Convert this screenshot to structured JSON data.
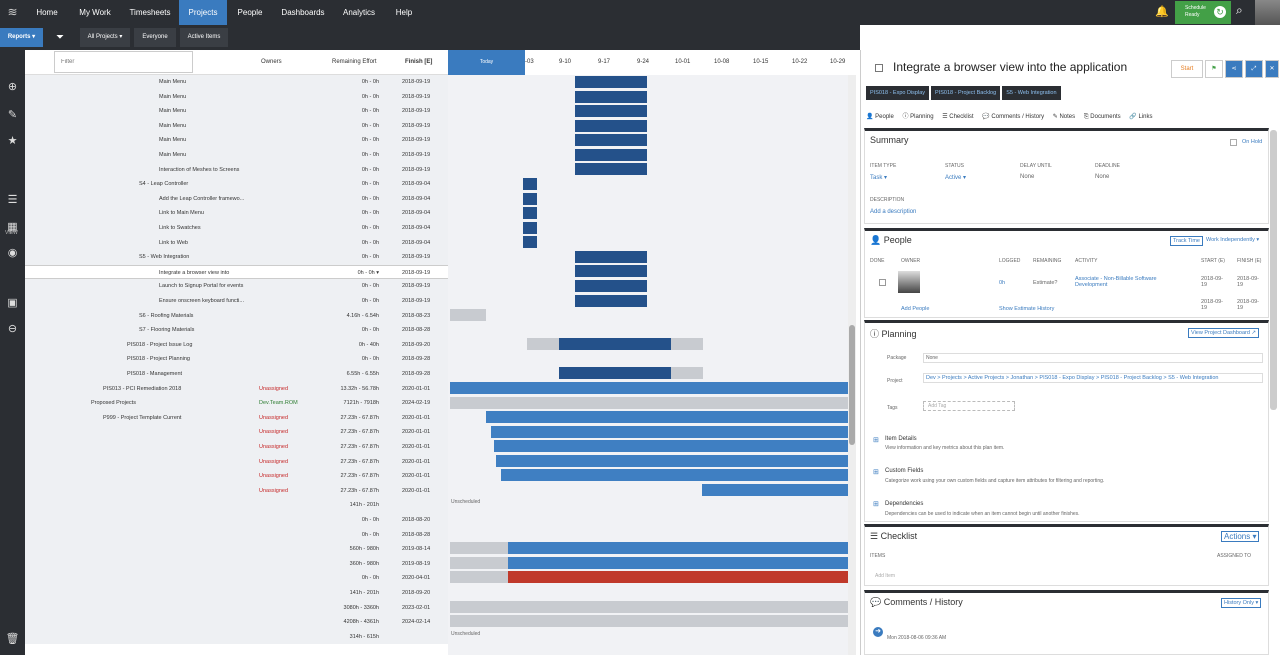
{
  "topnav": {
    "items": [
      "Home",
      "My Work",
      "Timesheets",
      "Projects",
      "People",
      "Dashboards",
      "Analytics",
      "Help"
    ],
    "active": "Projects",
    "schedule_l1": "Schedule",
    "schedule_l2": "Ready"
  },
  "toolbar": {
    "reports": "Reports ▾",
    "all_projects": "All Projects ▾",
    "everyone": "Everyone",
    "active_items": "Active Items"
  },
  "rail": {
    "view_label": "VIEW"
  },
  "grid": {
    "filter_placeholder": "Filter",
    "col_owners": "Owners",
    "col_effort": "Remaining Effort",
    "col_finish": "Finish [E]",
    "today": "Today",
    "dates": [
      "-03",
      "9-10",
      "9-17",
      "9-24",
      "10-01",
      "10-08",
      "10-15",
      "10-22",
      "10-29"
    ],
    "unscheduled": "Unscheduled",
    "rows": [
      {
        "name": "Main Menu",
        "owner": "",
        "effort": "0h - 0h",
        "finish": "2018-09-19"
      },
      {
        "name": "Main Menu",
        "owner": "",
        "effort": "0h - 0h",
        "finish": "2018-09-19"
      },
      {
        "name": "Main Menu",
        "owner": "",
        "effort": "0h - 0h",
        "finish": "2018-09-19"
      },
      {
        "name": "Main Menu",
        "owner": "",
        "effort": "0h - 0h",
        "finish": "2018-09-19"
      },
      {
        "name": "Main Menu",
        "owner": "",
        "effort": "0h - 0h",
        "finish": "2018-09-19"
      },
      {
        "name": "Main Menu",
        "owner": "",
        "effort": "0h - 0h",
        "finish": "2018-09-19"
      },
      {
        "name": "Interaction of Meshes to Screens",
        "owner": "",
        "effort": "0h - 0h",
        "finish": "2018-09-19"
      },
      {
        "name": "S4 - Leap Controller",
        "owner": "",
        "effort": "0h - 0h",
        "finish": "2018-09-04"
      },
      {
        "name": "Add the Leap Controller framewo...",
        "owner": "",
        "effort": "0h - 0h",
        "finish": "2018-09-04"
      },
      {
        "name": "Link to Main Menu",
        "owner": "",
        "effort": "0h - 0h",
        "finish": "2018-09-04"
      },
      {
        "name": "Link to Swatches",
        "owner": "",
        "effort": "0h - 0h",
        "finish": "2018-09-04"
      },
      {
        "name": "Link to Web",
        "owner": "",
        "effort": "0h - 0h",
        "finish": "2018-09-04"
      },
      {
        "name": "S5 - Web Integration",
        "owner": "",
        "effort": "0h - 0h",
        "finish": "2018-09-19"
      },
      {
        "name": "Integrate a browser view into",
        "owner": "",
        "effort": "0h - 0h ▾",
        "finish": "2018-09-19"
      },
      {
        "name": "Launch to Signup Portal for events",
        "owner": "",
        "effort": "0h - 0h",
        "finish": "2018-09-19"
      },
      {
        "name": "Ensure onscreen keyboard functi...",
        "owner": "",
        "effort": "0h - 0h",
        "finish": "2018-09-19"
      },
      {
        "name": "S6 - Roofing Materials",
        "owner": "",
        "effort": "4.16h - 6.54h",
        "finish": "2018-08-23"
      },
      {
        "name": "S7 - Flooring Materials",
        "owner": "",
        "effort": "0h - 0h",
        "finish": "2018-08-28"
      },
      {
        "name": "PIS018 - Project Issue Log",
        "owner": "",
        "effort": "0h - 40h",
        "finish": "2018-09-20"
      },
      {
        "name": "PIS018 - Project Planning",
        "owner": "",
        "effort": "0h - 0h",
        "finish": "2018-09-28"
      },
      {
        "name": "PIS018 - Management",
        "owner": "",
        "effort": "6.55h - 6.55h",
        "finish": "2018-09-28"
      },
      {
        "name": "PIS013 - PCI Remediation 2018",
        "owner": "Unassigned",
        "effort": "13.32h - 56.78h",
        "finish": "2020-01-01"
      },
      {
        "name": "Proposed Projects",
        "owner": "Dev.Team.ROM",
        "effort": "7121h - 7918h",
        "finish": "2024-02-19"
      },
      {
        "name": "P999 - Project Template Current",
        "owner": "Unassigned",
        "effort": "27.23h - 67.87h",
        "finish": "2020-01-01"
      },
      {
        "name": "",
        "owner": "Unassigned",
        "effort": "27.23h - 67.87h",
        "finish": "2020-01-01"
      },
      {
        "name": "",
        "owner": "Unassigned",
        "effort": "27.23h - 67.87h",
        "finish": "2020-01-01"
      },
      {
        "name": "",
        "owner": "Unassigned",
        "effort": "27.23h - 67.87h",
        "finish": "2020-01-01"
      },
      {
        "name": "",
        "owner": "Unassigned",
        "effort": "27.23h - 67.87h",
        "finish": "2020-01-01"
      },
      {
        "name": "",
        "owner": "Unassigned",
        "effort": "27.23h - 67.87h",
        "finish": "2020-01-01"
      },
      {
        "name": "",
        "owner": "",
        "effort": "141h - 201h",
        "finish": ""
      },
      {
        "name": "",
        "owner": "",
        "effort": "0h - 0h",
        "finish": "2018-08-20"
      },
      {
        "name": "",
        "owner": "",
        "effort": "0h - 0h",
        "finish": "2018-08-28"
      },
      {
        "name": "",
        "owner": "",
        "effort": "560h - 980h",
        "finish": "2019-08-14"
      },
      {
        "name": "",
        "owner": "",
        "effort": "360h - 980h",
        "finish": "2019-08-19"
      },
      {
        "name": "",
        "owner": "",
        "effort": "0h - 0h",
        "finish": "2020-04-01"
      },
      {
        "name": "",
        "owner": "",
        "effort": "141h - 201h",
        "finish": "2018-09-20"
      },
      {
        "name": "",
        "owner": "",
        "effort": "3080h - 3360h",
        "finish": "2023-02-01"
      },
      {
        "name": "",
        "owner": "",
        "effort": "4208h - 4361h",
        "finish": "2024-02-14"
      },
      {
        "name": "",
        "owner": "",
        "effort": "314h - 615h",
        "finish": ""
      }
    ]
  },
  "panel": {
    "title": "Integrate a browser view into the application",
    "start": "Start",
    "crumbs": [
      "PIS018 - Expo Display",
      "PIS018 - Project Backlog",
      "S5 - Web Integration"
    ],
    "tabs": [
      "People",
      "Planning",
      "Checklist",
      "Comments / History",
      "Notes",
      "Documents",
      "Links"
    ],
    "summary": {
      "title": "Summary",
      "on_hold": "On Hold",
      "item_type_l": "ITEM TYPE",
      "item_type": "Task ▾",
      "status_l": "STATUS",
      "status": "Active ▾",
      "delay_l": "DELAY UNTIL",
      "delay": "None",
      "deadline_l": "DEADLINE",
      "deadline": "None",
      "desc_l": "DESCRIPTION",
      "add_desc": "Add a description"
    },
    "people": {
      "title": "People",
      "track_time": "Track Time",
      "work_mode": "Work Independently ▾",
      "h_done": "DONE",
      "h_owner": "OWNER",
      "h_logged": "LOGGED",
      "h_remaining": "REMAINING",
      "h_activity": "ACTIVITY",
      "h_start": "START (E)",
      "h_finish": "FINISH (E)",
      "logged": "0h",
      "remaining": "Estimate?",
      "activity": "Associate - Non-Billable Software Development",
      "start": "2018-09-19",
      "finish": "2018-09-19",
      "start2": "2018-09-19",
      "finish2": "2018-09-19",
      "add_people": "Add People",
      "show_hist": "Show Estimate History"
    },
    "planning": {
      "title": "Planning",
      "dashboard": "View Project Dashboard ↗",
      "package_l": "Package",
      "package": "None",
      "project_l": "Project",
      "project": "Dev  >  Projects  >  Active Projects  >  Jonathan  >  PIS018 - Expo Display  >  PIS018 - Project Backlog  >  S5 - Web Integration",
      "tags_l": "Tags",
      "add_tag": "Add Tag",
      "item_details": "Item Details",
      "item_details_d": "View information and key metrics about this plan item.",
      "custom_fields": "Custom Fields",
      "custom_fields_d": "Categorize work using your own custom fields and capture item attributes for filtering and reporting.",
      "deps": "Dependencies",
      "deps_d": "Dependencies can be used to indicate when an item cannot begin until another finishes."
    },
    "checklist": {
      "title": "Checklist",
      "actions": "Actions ▾",
      "items_l": "ITEMS",
      "assigned_l": "ASSIGNED TO",
      "add_item": "Add Item"
    },
    "comments": {
      "title": "Comments / History",
      "history_only": "History Only ▾",
      "date": "Mon 2018-08-06 09:36 AM"
    }
  },
  "colors": {
    "nav_bg": "#2b2e33",
    "accent": "#3a7bbf",
    "green": "#43a047",
    "bar_dark": "#24518a",
    "bar_mid": "#3f7fc2",
    "bar_red": "#c0392b"
  }
}
